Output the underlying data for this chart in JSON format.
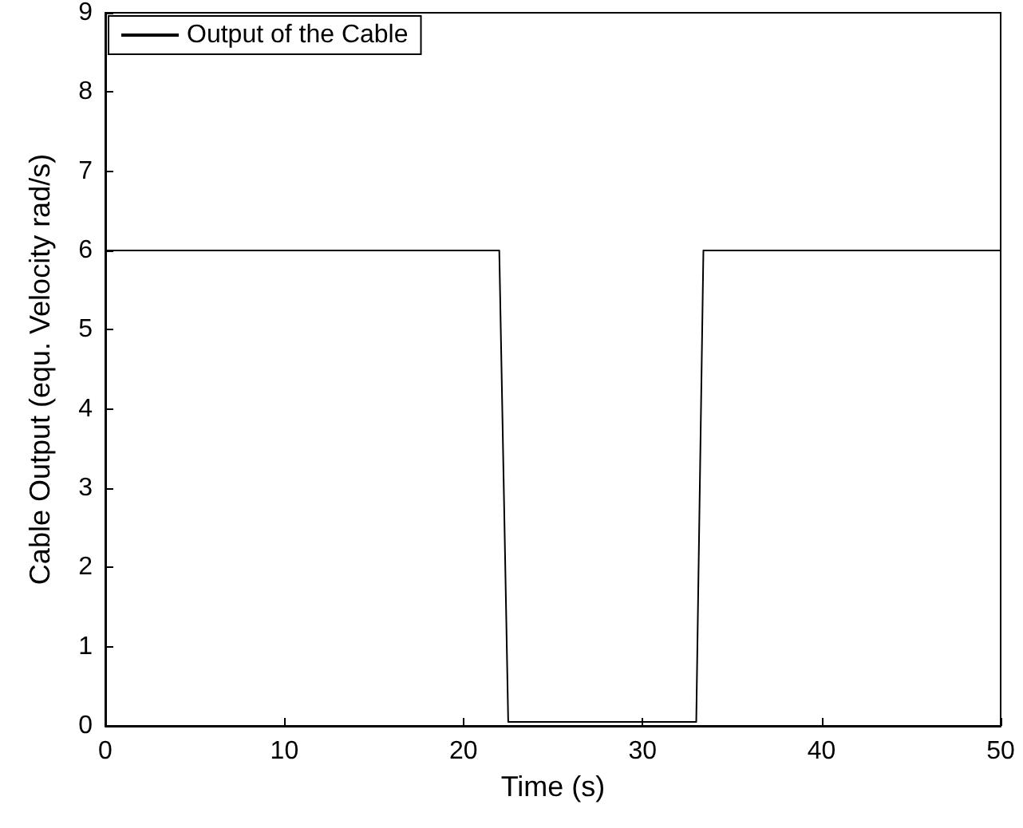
{
  "chart_data": {
    "type": "line",
    "xlabel": "Time (s)",
    "ylabel": "Cable Output (equ. Velocity rad/s)",
    "series": [
      {
        "name": "Output of the Cable",
        "color": "#000000",
        "x": [
          0,
          22,
          22.5,
          33,
          33.4,
          50
        ],
        "values": [
          6,
          6,
          0.05,
          0.05,
          6,
          6
        ]
      }
    ],
    "xlim": [
      0,
      50
    ],
    "xticks": [
      0,
      10,
      20,
      30,
      40,
      50
    ],
    "ylim": [
      0,
      9
    ],
    "yticks": [
      0,
      1,
      2,
      3,
      4,
      5,
      6,
      7,
      8,
      9
    ],
    "grid": false,
    "legend": "top left",
    "marker": "none",
    "line_style": "solid"
  }
}
